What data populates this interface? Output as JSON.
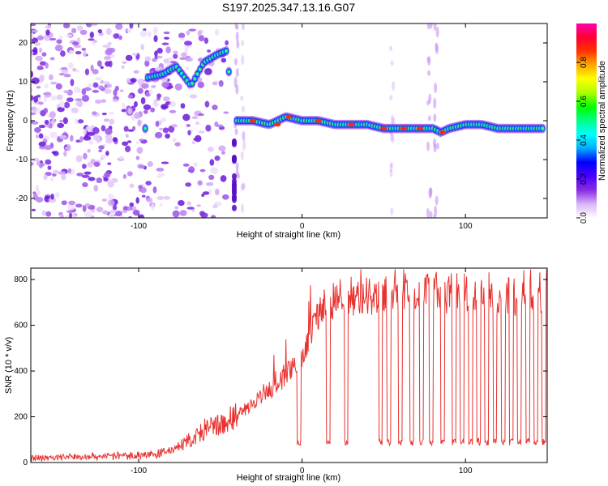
{
  "title": "S197.2025.347.13.16.G07",
  "chart_data": [
    {
      "type": "heatmap",
      "name": "spectrogram",
      "xlabel": "Height of straight line (km)",
      "ylabel": "Frequency (Hz)",
      "xlim": [
        -166,
        150
      ],
      "ylim": [
        -25,
        25
      ],
      "xticks": [
        -100,
        0,
        100
      ],
      "yticks": [
        -20,
        -10,
        0,
        10,
        20
      ],
      "colorbar": {
        "label": "Normalized spectral amplitude",
        "range": [
          0,
          1
        ],
        "ticks": [
          "0.0",
          "0.2",
          "0.4",
          "0.6",
          "0.8"
        ],
        "colors": [
          "#ffffff",
          "#d8b4f8",
          "#8a2be2",
          "#4b00ff",
          "#0000ff",
          "#00aaff",
          "#00ffff",
          "#00ff88",
          "#00ff00",
          "#aaff00",
          "#ffff00",
          "#ffaa00",
          "#ff3300",
          "#ff0033",
          "#ff00aa"
        ]
      },
      "ridge": {
        "x": [
          -95,
          -85,
          -77,
          -68,
          -60,
          -52,
          -46,
          -42,
          -38,
          -30,
          -20,
          -10,
          0,
          10,
          20,
          30,
          40,
          50,
          60,
          70,
          80,
          85,
          90,
          100,
          110,
          120,
          130,
          140,
          148
        ],
        "y": [
          11,
          12,
          14,
          9,
          15,
          17,
          18,
          0,
          0,
          0,
          -1,
          1,
          0,
          0,
          -1,
          -1,
          -1,
          -2,
          -2,
          -2,
          -2,
          -3,
          -2,
          -1,
          -1,
          -2,
          -2,
          -2,
          -2
        ]
      }
    },
    {
      "type": "line",
      "name": "snr",
      "xlabel": "Height of straight line (km)",
      "ylabel": "SNR (10 * v/v)",
      "xlim": [
        -166,
        150
      ],
      "ylim": [
        0,
        850
      ],
      "xticks": [
        -100,
        0,
        100
      ],
      "yticks": [
        0,
        200,
        400,
        600,
        800
      ],
      "color": "#e8322f",
      "series": {
        "x": [
          -166,
          -140,
          -110,
          -90,
          -80,
          -70,
          -65,
          -60,
          -55,
          -50,
          -45,
          -40,
          -35,
          -30,
          -25,
          -20,
          -15,
          -10,
          -5,
          0,
          3,
          6,
          8,
          10,
          12,
          15,
          20,
          25,
          30,
          40,
          50,
          60,
          70,
          80,
          90,
          100,
          110,
          120,
          130,
          140,
          150
        ],
        "y": [
          20,
          25,
          30,
          35,
          55,
          90,
          110,
          140,
          150,
          160,
          180,
          200,
          230,
          260,
          300,
          310,
          340,
          380,
          420,
          450,
          520,
          580,
          620,
          650,
          680,
          700,
          720,
          720,
          730,
          730,
          740,
          740,
          745,
          750,
          740,
          740,
          745,
          730,
          730,
          730,
          720
        ]
      },
      "dropouts_x": [
        -2,
        16,
        27,
        48,
        53,
        60,
        67,
        73,
        79,
        86,
        93,
        98,
        103,
        108,
        113,
        118,
        123,
        128,
        133,
        138,
        143,
        148
      ],
      "dropout_level": 90
    }
  ]
}
